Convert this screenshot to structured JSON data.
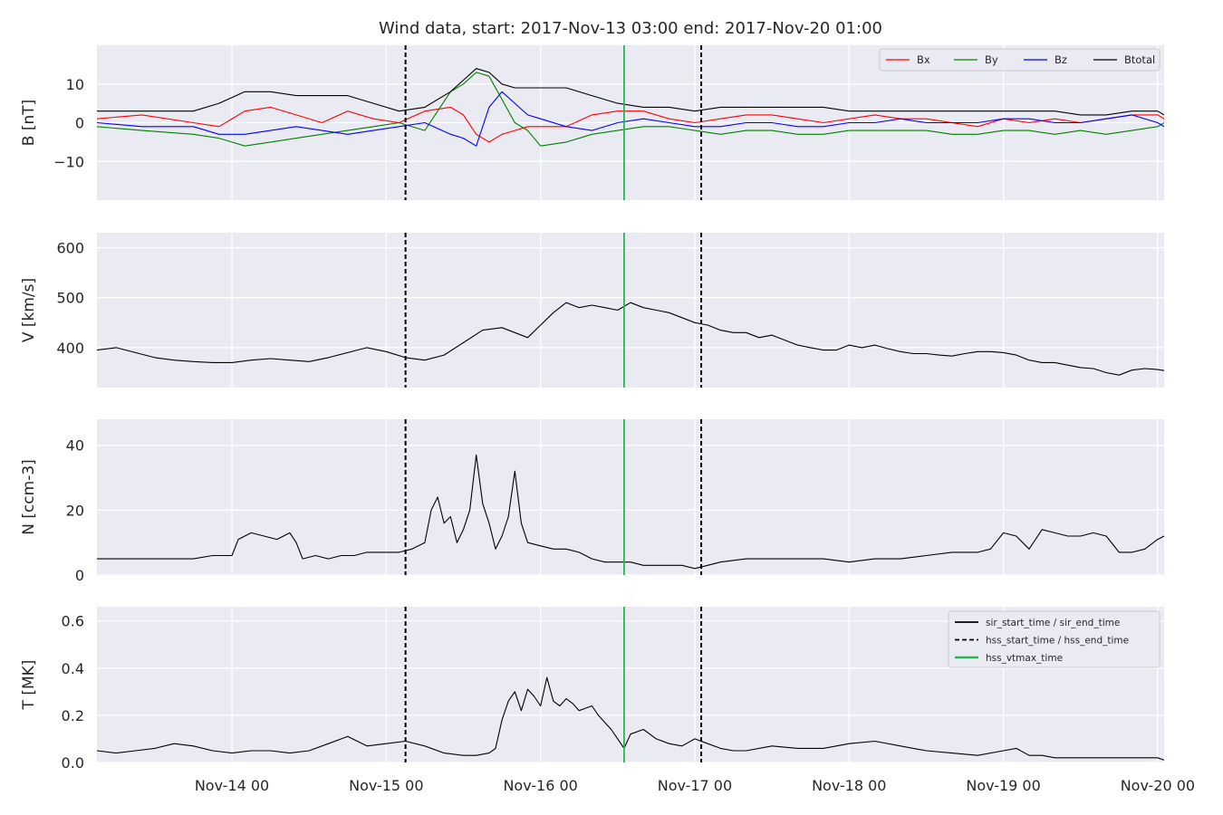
{
  "chart_data": {
    "type": "line",
    "title": "Wind data, start: 2017-Nov-13 03:00  end: 2017-Nov-20 01:00",
    "x_range_hours_from_2017-11-13T00:00": [
      3,
      169
    ],
    "x_ticks": [
      {
        "label": "Nov-14 00",
        "hour": 24
      },
      {
        "label": "Nov-15 00",
        "hour": 48
      },
      {
        "label": "Nov-16 00",
        "hour": 72
      },
      {
        "label": "Nov-17 00",
        "hour": 96
      },
      {
        "label": "Nov-18 00",
        "hour": 120
      },
      {
        "label": "Nov-19 00",
        "hour": 144
      },
      {
        "label": "Nov-20 00",
        "hour": 168
      }
    ],
    "grid": true,
    "event_lines": [
      {
        "name": "hss_start_time",
        "hour": 51,
        "style": "dashed",
        "color": "#000000"
      },
      {
        "name": "hss_vtmax_time",
        "hour": 85,
        "style": "solid",
        "color": "#2cb35a"
      },
      {
        "name": "hss_end_time",
        "hour": 97,
        "style": "dashed",
        "color": "#000000"
      }
    ],
    "panels": [
      {
        "id": "B",
        "ylabel": "B [nT]",
        "ylim": [
          -20,
          20
        ],
        "yticks": [
          -10,
          0,
          10
        ],
        "legend": "top-right",
        "series": [
          {
            "name": "Bx",
            "color": "#ff0000",
            "x": [
              3,
              10,
              18,
              22,
              26,
              30,
              34,
              38,
              42,
              46,
              50,
              54,
              58,
              60,
              62,
              64,
              66,
              68,
              70,
              72,
              76,
              80,
              84,
              88,
              92,
              96,
              100,
              104,
              108,
              112,
              116,
              120,
              124,
              128,
              132,
              136,
              140,
              144,
              148,
              152,
              156,
              160,
              164,
              168,
              169
            ],
            "y": [
              1,
              2,
              0,
              -1,
              3,
              4,
              2,
              0,
              3,
              1,
              0,
              3,
              4,
              2,
              -3,
              -5,
              -3,
              -2,
              -1,
              -1,
              -1,
              2,
              3,
              3,
              1,
              0,
              1,
              2,
              2,
              1,
              0,
              1,
              2,
              1,
              1,
              0,
              -1,
              1,
              0,
              1,
              0,
              1,
              2,
              2,
              1
            ]
          },
          {
            "name": "By",
            "color": "#008000",
            "x": [
              3,
              10,
              18,
              22,
              26,
              30,
              34,
              38,
              42,
              46,
              50,
              54,
              58,
              60,
              62,
              64,
              66,
              68,
              70,
              72,
              76,
              80,
              84,
              88,
              92,
              96,
              100,
              104,
              108,
              112,
              116,
              120,
              124,
              128,
              132,
              136,
              140,
              144,
              148,
              152,
              156,
              160,
              164,
              168,
              169
            ],
            "y": [
              -1,
              -2,
              -3,
              -4,
              -6,
              -5,
              -4,
              -3,
              -2,
              -1,
              0,
              -2,
              8,
              10,
              13,
              12,
              6,
              0,
              -2,
              -6,
              -5,
              -3,
              -2,
              -1,
              -1,
              -2,
              -3,
              -2,
              -2,
              -3,
              -3,
              -2,
              -2,
              -2,
              -2,
              -3,
              -3,
              -2,
              -2,
              -3,
              -2,
              -3,
              -2,
              -1,
              0
            ]
          },
          {
            "name": "Bz",
            "color": "#0000ff",
            "x": [
              3,
              10,
              18,
              22,
              26,
              30,
              34,
              38,
              42,
              46,
              50,
              54,
              58,
              60,
              62,
              64,
              66,
              68,
              70,
              72,
              76,
              80,
              84,
              88,
              92,
              96,
              100,
              104,
              108,
              112,
              116,
              120,
              124,
              128,
              132,
              136,
              140,
              144,
              148,
              152,
              156,
              160,
              164,
              168,
              169
            ],
            "y": [
              0,
              -1,
              -1,
              -3,
              -3,
              -2,
              -1,
              -2,
              -3,
              -2,
              -1,
              0,
              -3,
              -4,
              -6,
              4,
              8,
              5,
              2,
              1,
              -1,
              -2,
              0,
              1,
              0,
              -1,
              -1,
              0,
              0,
              -1,
              -1,
              0,
              0,
              1,
              0,
              0,
              0,
              1,
              1,
              0,
              0,
              1,
              2,
              0,
              -1
            ]
          },
          {
            "name": "Btotal",
            "color": "#000000",
            "x": [
              3,
              10,
              18,
              22,
              26,
              30,
              34,
              38,
              42,
              46,
              50,
              54,
              58,
              60,
              62,
              64,
              66,
              68,
              70,
              72,
              76,
              80,
              84,
              88,
              92,
              96,
              100,
              104,
              108,
              112,
              116,
              120,
              124,
              128,
              132,
              136,
              140,
              144,
              148,
              152,
              156,
              160,
              164,
              168,
              169
            ],
            "y": [
              3,
              3,
              3,
              5,
              8,
              8,
              7,
              7,
              7,
              5,
              3,
              4,
              8,
              11,
              14,
              13,
              10,
              9,
              9,
              9,
              9,
              7,
              5,
              4,
              4,
              3,
              4,
              4,
              4,
              4,
              4,
              3,
              3,
              3,
              3,
              3,
              3,
              3,
              3,
              3,
              2,
              2,
              3,
              3,
              2
            ]
          }
        ]
      },
      {
        "id": "V",
        "ylabel": "V [km/s]",
        "ylim": [
          320,
          630
        ],
        "yticks": [
          400,
          500,
          600
        ],
        "series": [
          {
            "name": "",
            "color": "#000000",
            "x": [
              3,
              6,
              9,
              12,
              15,
              18,
              21,
              24,
              27,
              30,
              33,
              36,
              39,
              42,
              45,
              48,
              51,
              54,
              57,
              60,
              63,
              66,
              68,
              70,
              72,
              74,
              76,
              78,
              80,
              82,
              84,
              86,
              88,
              90,
              92,
              94,
              96,
              98,
              100,
              102,
              104,
              106,
              108,
              110,
              112,
              114,
              116,
              118,
              120,
              122,
              124,
              126,
              128,
              130,
              132,
              134,
              136,
              138,
              140,
              142,
              144,
              146,
              148,
              150,
              152,
              154,
              156,
              158,
              160,
              162,
              164,
              166,
              168,
              169
            ],
            "y": [
              395,
              400,
              390,
              380,
              375,
              372,
              370,
              370,
              375,
              378,
              375,
              372,
              380,
              390,
              400,
              392,
              380,
              375,
              385,
              410,
              435,
              440,
              430,
              420,
              445,
              470,
              490,
              480,
              485,
              480,
              475,
              490,
              480,
              475,
              470,
              460,
              450,
              445,
              435,
              430,
              430,
              420,
              425,
              415,
              405,
              400,
              395,
              395,
              405,
              400,
              405,
              398,
              392,
              388,
              388,
              385,
              383,
              388,
              392,
              392,
              390,
              385,
              375,
              370,
              370,
              365,
              360,
              358,
              350,
              345,
              355,
              358,
              356,
              354
            ]
          }
        ]
      },
      {
        "id": "N",
        "ylabel": "N [ccm-3]",
        "ylim": [
          0,
          48
        ],
        "yticks": [
          0,
          20,
          40
        ],
        "series": [
          {
            "name": "",
            "color": "#000000",
            "x": [
              3,
              6,
              9,
              12,
              15,
              18,
              21,
              24,
              25,
              27,
              29,
              31,
              33,
              34,
              35,
              37,
              39,
              41,
              43,
              45,
              48,
              50,
              52,
              54,
              55,
              56,
              57,
              58,
              59,
              60,
              61,
              62,
              63,
              64,
              65,
              66,
              67,
              68,
              69,
              70,
              72,
              74,
              76,
              78,
              80,
              82,
              84,
              86,
              88,
              90,
              92,
              94,
              96,
              98,
              100,
              104,
              108,
              112,
              116,
              120,
              124,
              128,
              132,
              136,
              140,
              142,
              144,
              146,
              148,
              150,
              152,
              154,
              156,
              158,
              160,
              162,
              164,
              166,
              168,
              169
            ],
            "y": [
              5,
              5,
              5,
              5,
              5,
              5,
              6,
              6,
              11,
              13,
              12,
              11,
              13,
              10,
              5,
              6,
              5,
              6,
              6,
              7,
              7,
              7,
              8,
              10,
              20,
              24,
              16,
              18,
              10,
              14,
              20,
              37,
              22,
              16,
              8,
              12,
              18,
              32,
              16,
              10,
              9,
              8,
              8,
              7,
              5,
              4,
              4,
              4,
              3,
              3,
              3,
              3,
              2,
              3,
              4,
              5,
              5,
              5,
              5,
              4,
              5,
              5,
              6,
              7,
              7,
              8,
              13,
              12,
              8,
              14,
              13,
              12,
              12,
              13,
              12,
              7,
              7,
              8,
              11,
              12
            ]
          }
        ]
      },
      {
        "id": "T",
        "ylabel": "T [MK]",
        "ylim": [
          0,
          0.66
        ],
        "yticks": [
          0.0,
          0.2,
          0.4,
          0.6
        ],
        "legend": "top-right",
        "legend_entries": [
          {
            "label": "sir_start_time / sir_end_time",
            "style": "solid",
            "color": "#000000"
          },
          {
            "label": "hss_start_time / hss_end_time",
            "style": "dashed",
            "color": "#000000"
          },
          {
            "label": "hss_vtmax_time",
            "style": "solid",
            "color": "#2cb35a"
          }
        ],
        "series": [
          {
            "name": "",
            "color": "#000000",
            "x": [
              3,
              6,
              9,
              12,
              15,
              18,
              21,
              24,
              27,
              30,
              33,
              36,
              39,
              42,
              45,
              48,
              51,
              54,
              57,
              60,
              62,
              64,
              65,
              66,
              67,
              68,
              69,
              70,
              71,
              72,
              73,
              74,
              75,
              76,
              77,
              78,
              79,
              80,
              81,
              82,
              83,
              84,
              85,
              86,
              88,
              90,
              92,
              94,
              96,
              98,
              100,
              102,
              104,
              108,
              112,
              116,
              120,
              124,
              128,
              132,
              136,
              140,
              144,
              146,
              148,
              150,
              152,
              156,
              160,
              164,
              168,
              169
            ],
            "y": [
              0.05,
              0.04,
              0.05,
              0.06,
              0.08,
              0.07,
              0.05,
              0.04,
              0.05,
              0.05,
              0.04,
              0.05,
              0.08,
              0.11,
              0.07,
              0.08,
              0.09,
              0.07,
              0.04,
              0.03,
              0.03,
              0.04,
              0.06,
              0.18,
              0.26,
              0.3,
              0.22,
              0.31,
              0.28,
              0.24,
              0.36,
              0.26,
              0.24,
              0.27,
              0.25,
              0.22,
              0.23,
              0.24,
              0.2,
              0.17,
              0.14,
              0.1,
              0.06,
              0.12,
              0.14,
              0.1,
              0.08,
              0.07,
              0.1,
              0.08,
              0.06,
              0.05,
              0.05,
              0.07,
              0.06,
              0.06,
              0.08,
              0.09,
              0.07,
              0.05,
              0.04,
              0.03,
              0.05,
              0.06,
              0.03,
              0.03,
              0.02,
              0.02,
              0.02,
              0.02,
              0.02,
              0.01
            ]
          }
        ]
      }
    ]
  }
}
